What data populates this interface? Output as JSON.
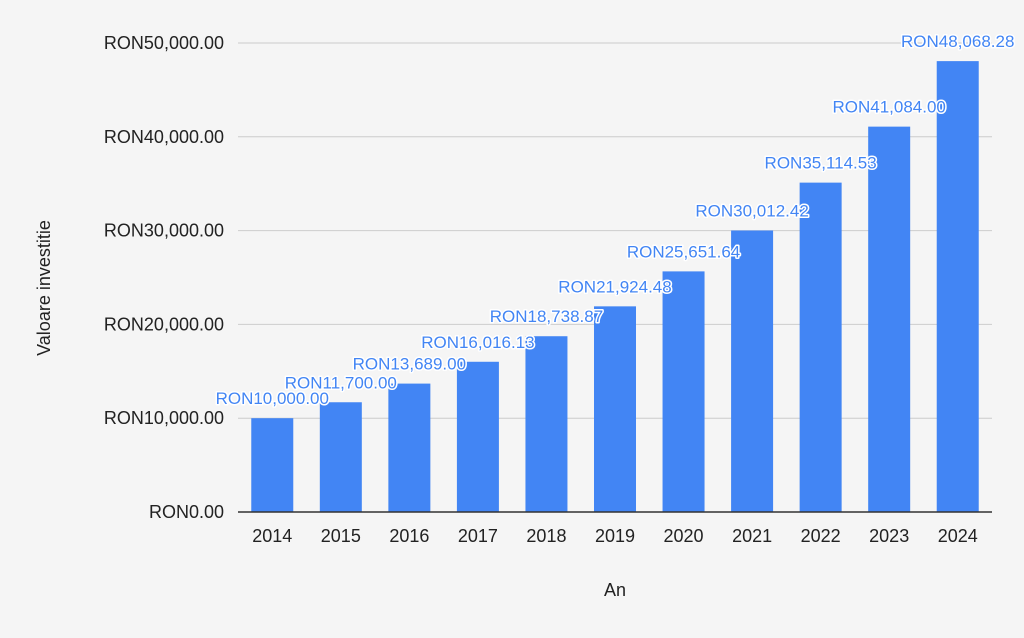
{
  "chart_data": {
    "type": "bar",
    "categories": [
      "2014",
      "2015",
      "2016",
      "2017",
      "2018",
      "2019",
      "2020",
      "2021",
      "2022",
      "2023",
      "2024"
    ],
    "series": [
      {
        "values": [
          10000.0,
          11700.0,
          13689.0,
          16016.13,
          18738.87,
          21924.48,
          25651.64,
          30012.42,
          35114.53,
          41084.0,
          48068.28
        ],
        "data_labels": [
          "RON10,000.00",
          "RON11,700.00",
          "RON13,689.00",
          "RON16,016.13",
          "RON18,738.87",
          "RON21,924.48",
          "RON25,651.64",
          "RON30,012.42",
          "RON35,114.53",
          "RON41,084.00",
          "RON48,068.28"
        ]
      }
    ],
    "title": "",
    "xlabel": "An",
    "ylabel": "Valoare investitie",
    "ylim": [
      0,
      50000
    ],
    "y_ticks": [
      0,
      10000,
      20000,
      30000,
      40000,
      50000
    ],
    "y_tick_labels": [
      "RON0.00",
      "RON10,000.00",
      "RON20,000.00",
      "RON30,000.00",
      "RON40,000.00",
      "RON50,000.00"
    ],
    "grid": true,
    "legend": "none",
    "colors": {
      "bar": "#4285f4",
      "data_label": "#4285f4",
      "grid": "#cccccc",
      "axis": "#333333",
      "text": "#222222",
      "background": "#f5f5f5"
    }
  }
}
